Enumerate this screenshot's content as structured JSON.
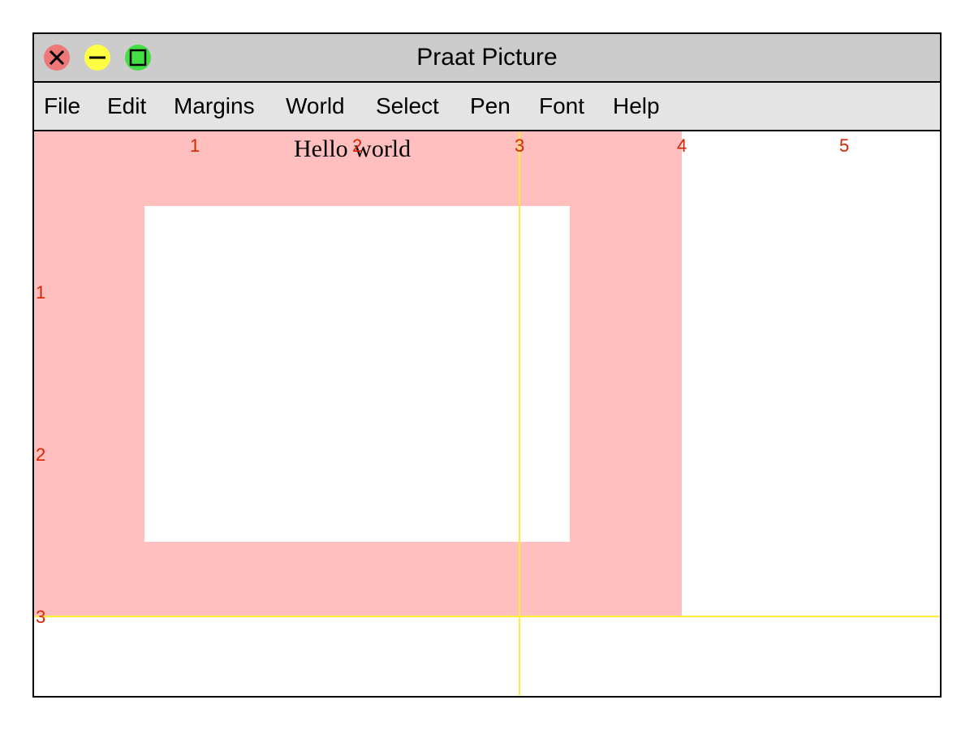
{
  "window": {
    "title": "Praat Picture",
    "controls": {
      "close_icon": "close-icon",
      "minimize_icon": "minimize-icon",
      "maximize_icon": "maximize-icon"
    }
  },
  "menu": {
    "items": [
      "File",
      "Edit",
      "Margins",
      "World",
      "Select",
      "Pen",
      "Font",
      "Help"
    ]
  },
  "picture": {
    "text": "Hello world",
    "ruler_top": [
      "1",
      "2",
      "3",
      "4",
      "5"
    ],
    "ruler_left": [
      "1",
      "2",
      "3"
    ]
  },
  "colors": {
    "selection": "#ffbfbf",
    "ruler_text": "#dd2200",
    "guide_lines": "#ffee33",
    "close": "#ee7777",
    "minimize": "#ffff44",
    "maximize": "#44dd44"
  }
}
